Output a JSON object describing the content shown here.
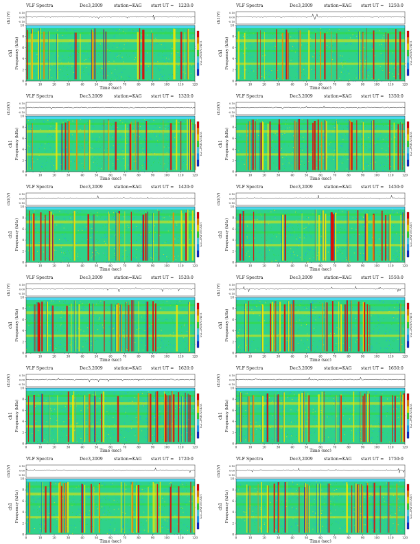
{
  "header": {
    "instrument": "VLF Spectra",
    "date": "Dec3,2009",
    "station": "station=KAG",
    "start_prefix": "start  UT  ="
  },
  "chart_data": {
    "type": "heatmap",
    "xlabel": "Time  (sec)",
    "ylabel": "Frequency  (kHz)",
    "wave_ylabel": "ch1(V)",
    "channel_label": "ch1",
    "colorbar_label": "log₁₀PSD(V²/Hz)",
    "x_ticks": [
      "0",
      "10",
      "20",
      "30",
      "40",
      "50",
      "60",
      "70",
      "80",
      "90",
      "100",
      "110",
      "120"
    ],
    "y_ticks": [
      "0",
      "2",
      "4",
      "6",
      "8",
      "10"
    ],
    "wave_ticks": [
      "0.10",
      "0.00",
      "-0.10"
    ],
    "xlim": [
      0,
      120
    ],
    "ylim": [
      0,
      10
    ],
    "colors": {
      "background": "#2fd28a",
      "low": "#1ea0ff",
      "mid": "#33dd33",
      "high": "#f5e600",
      "peak": "#e60000",
      "top_band": "#4ad8ec"
    },
    "panels": [
      {
        "start_ut": "1220:0"
      },
      {
        "start_ut": "1250:0"
      },
      {
        "start_ut": "1320:0"
      },
      {
        "start_ut": "1350:0"
      },
      {
        "start_ut": "1420:0"
      },
      {
        "start_ut": "1450:0"
      },
      {
        "start_ut": "1520:0"
      },
      {
        "start_ut": "1550:0"
      },
      {
        "start_ut": "1620:0"
      },
      {
        "start_ut": "1650:0"
      },
      {
        "start_ut": "1720:0"
      },
      {
        "start_ut": "1750:0"
      }
    ]
  }
}
